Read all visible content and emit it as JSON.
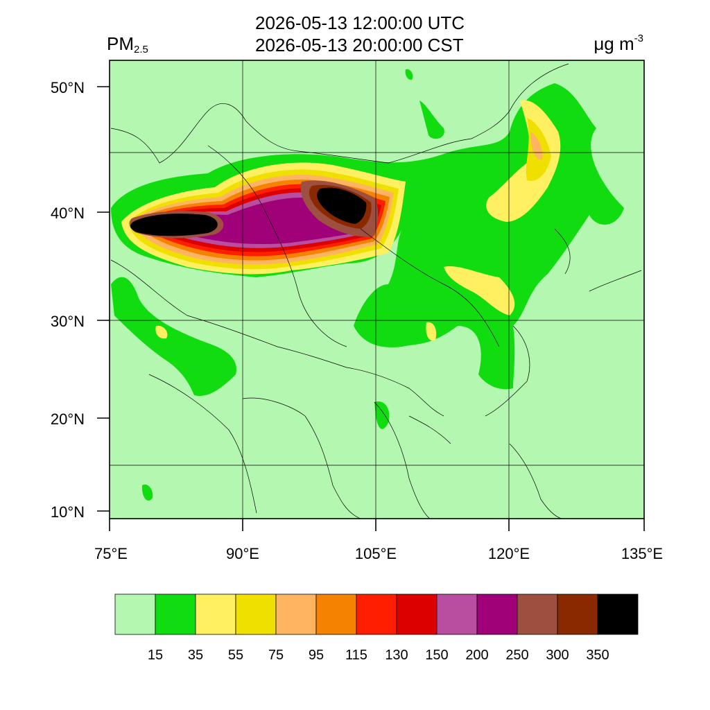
{
  "header": {
    "title_utc": "2026-05-13 12:00:00 UTC",
    "title_cst": "2026-05-13 20:00:00 CST",
    "variable": "PM",
    "variable_sub": "2.5",
    "unit": "μg m",
    "unit_sup": "-3"
  },
  "axes": {
    "lat_labels": [
      "50°N",
      "40°N",
      "30°N",
      "20°N",
      "10°N"
    ],
    "lon_labels": [
      "75°E",
      "90°E",
      "105°E",
      "120°E",
      "135°E"
    ],
    "lat_range": [
      9,
      52
    ],
    "lon_range": [
      75,
      135
    ]
  },
  "colorbar": {
    "levels": [
      "15",
      "35",
      "55",
      "75",
      "95",
      "115",
      "130",
      "150",
      "200",
      "250",
      "300",
      "350"
    ],
    "colors": [
      "#b4f7b0",
      "#10dc10",
      "#fff061",
      "#f0e000",
      "#ffb461",
      "#f58200",
      "#ff1e00",
      "#dc0000",
      "#b94da0",
      "#a00078",
      "#9e5040",
      "#8a2800",
      "#000000"
    ]
  },
  "map": {
    "background_color": "#b4f7b0",
    "grid_lons": [
      90,
      105,
      120
    ],
    "grid_lats": [
      15,
      30,
      45
    ]
  }
}
